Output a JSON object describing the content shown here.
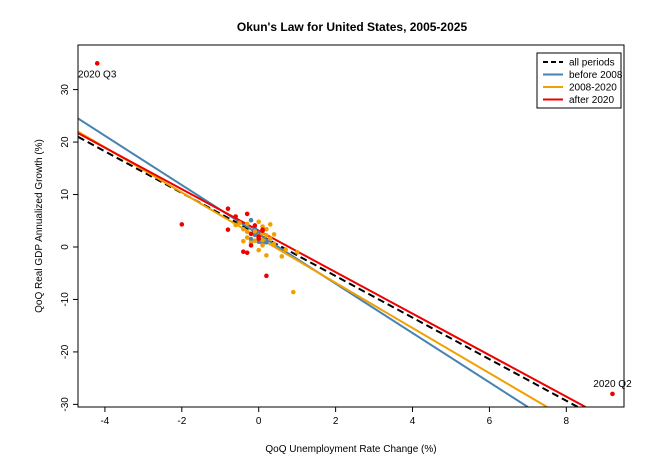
{
  "chart_data": {
    "type": "scatter",
    "title": "Okun's Law for United States, 2005-2025",
    "xlabel": "QoQ Unemployment Rate Change (%)",
    "ylabel": "QoQ Real GDP Annualized Growth (%)",
    "xlim": [
      -4.7,
      9.5
    ],
    "ylim": [
      -30.5,
      38.5
    ],
    "xticks": [
      -4,
      -2,
      0,
      2,
      4,
      6,
      8
    ],
    "yticks": [
      -30,
      -20,
      -10,
      0,
      10,
      20,
      30
    ],
    "legend": {
      "placement": "top-right",
      "entries": [
        {
          "label": "all periods",
          "color": "#000000",
          "dash": "dashed"
        },
        {
          "label": "before 2008",
          "color": "#4682b4",
          "dash": "solid"
        },
        {
          "label": "2008-2020",
          "color": "#f0a000",
          "dash": "solid"
        },
        {
          "label": "after 2020",
          "color": "#ee0000",
          "dash": "solid"
        }
      ]
    },
    "fit_lines": [
      {
        "name": "all periods",
        "color": "#000000",
        "dash": "dashed",
        "x": [
          -4.7,
          8.3
        ],
        "y": [
          21.0,
          -30.5
        ]
      },
      {
        "name": "before 2008",
        "color": "#4682b4",
        "dash": "solid",
        "x": [
          -4.7,
          7.0
        ],
        "y": [
          24.5,
          -30.5
        ]
      },
      {
        "name": "2008-2020",
        "color": "#f0a000",
        "dash": "solid",
        "x": [
          -4.7,
          7.5
        ],
        "y": [
          22.0,
          -30.5
        ]
      },
      {
        "name": "after 2020",
        "color": "#ee0000",
        "dash": "solid",
        "x": [
          -4.7,
          8.5
        ],
        "y": [
          21.7,
          -30.5
        ]
      }
    ],
    "series": [
      {
        "name": "before 2008",
        "color": "#4682b4",
        "points": [
          [
            -0.2,
            5.1
          ],
          [
            -0.1,
            2.3
          ],
          [
            0.0,
            1.0
          ],
          [
            0.1,
            0.6
          ],
          [
            -0.1,
            3.5
          ],
          [
            0.0,
            2.7
          ],
          [
            -0.2,
            1.5
          ],
          [
            0.2,
            0.9
          ]
        ]
      },
      {
        "name": "2008-2020",
        "color": "#f0a000",
        "points": [
          [
            -0.4,
            1.1
          ],
          [
            -0.3,
            2.9
          ],
          [
            -0.3,
            4.4
          ],
          [
            -0.1,
            3.0
          ],
          [
            0.0,
            2.1
          ],
          [
            0.1,
            1.3
          ],
          [
            0.2,
            3.4
          ],
          [
            -0.2,
            0.8
          ],
          [
            0.3,
            4.3
          ],
          [
            0.4,
            2.4
          ],
          [
            0.2,
            -1.6
          ],
          [
            -0.5,
            4.6
          ],
          [
            0.1,
            0.3
          ],
          [
            0.6,
            -1.8
          ],
          [
            0.9,
            -8.6
          ],
          [
            1.0,
            -1.0
          ],
          [
            0.0,
            4.8
          ],
          [
            -0.3,
            1.8
          ],
          [
            0.1,
            2.6
          ],
          [
            0.4,
            0.6
          ],
          [
            -0.6,
            4.2
          ],
          [
            0.0,
            -0.6
          ],
          [
            0.3,
            1.6
          ],
          [
            0.1,
            3.9
          ],
          [
            -0.1,
            1.2
          ],
          [
            0.2,
            2.2
          ],
          [
            -0.4,
            3.4
          ],
          [
            0.7,
            -0.5
          ]
        ]
      },
      {
        "name": "after 2020",
        "color": "#ee0000",
        "points": [
          [
            -4.2,
            35.0
          ],
          [
            9.2,
            -28.0
          ],
          [
            -2.0,
            4.3
          ],
          [
            -0.8,
            7.3
          ],
          [
            -0.3,
            6.3
          ],
          [
            -0.6,
            5.8
          ],
          [
            -0.1,
            4.1
          ],
          [
            0.1,
            3.3
          ],
          [
            -0.2,
            2.5
          ],
          [
            0.0,
            2.0
          ],
          [
            0.2,
            -5.5
          ],
          [
            -0.3,
            -1.1
          ],
          [
            -0.8,
            3.3
          ],
          [
            0.0,
            1.6
          ],
          [
            -0.4,
            -0.9
          ],
          [
            0.1,
            3.1
          ],
          [
            -0.2,
            0.3
          ]
        ]
      }
    ],
    "annotations": [
      {
        "text": "2020 Q3",
        "x": -4.2,
        "y": 35.0,
        "position": "below"
      },
      {
        "text": "2020 Q2",
        "x": 9.2,
        "y": -28.0,
        "position": "above"
      }
    ]
  }
}
